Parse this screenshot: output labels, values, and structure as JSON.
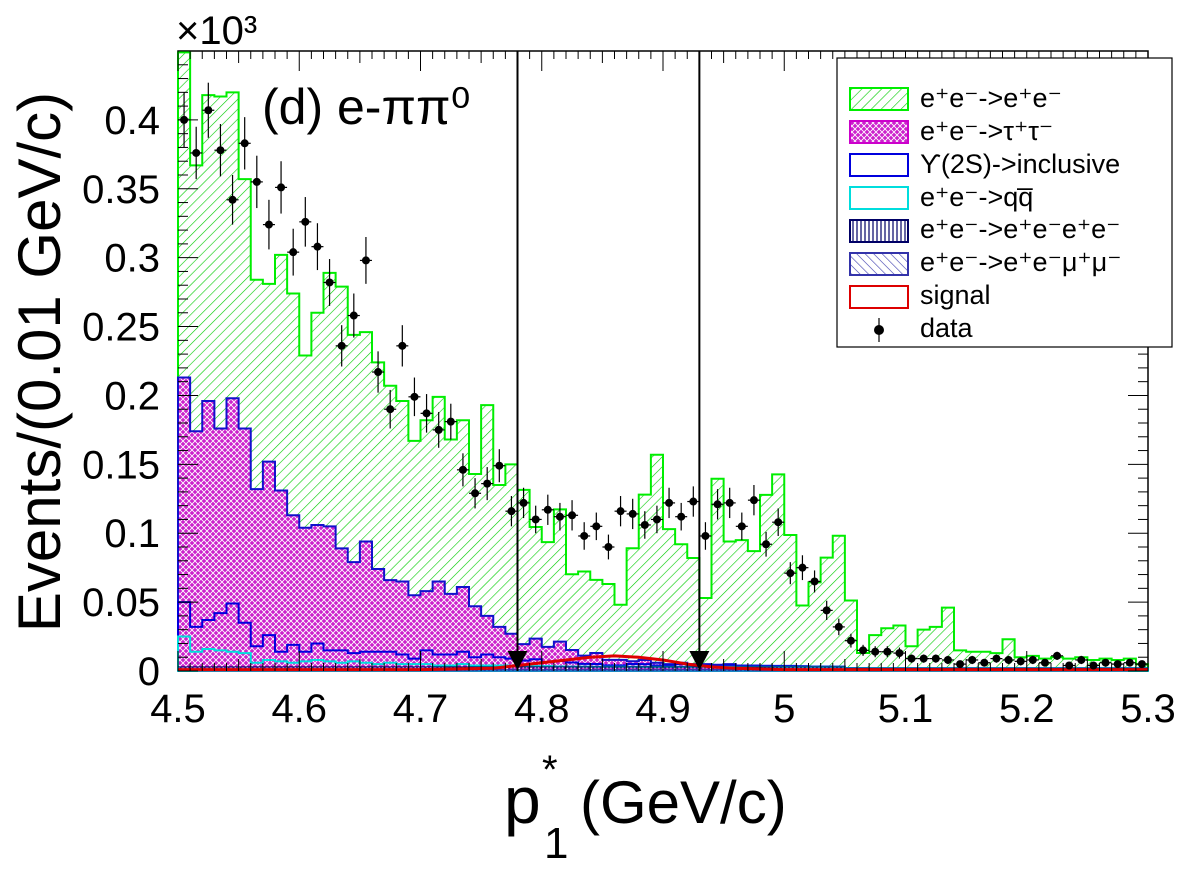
{
  "chart_data": {
    "type": "bar",
    "panel_label": "(d) e-ππ⁰",
    "exponent_label": "×10³",
    "xlabel_main": "p",
    "xlabel_sub": "1",
    "xlabel_sup": "*",
    "xlabel_units": "(GeV/c)",
    "ylabel": "Events/(0.01 GeV/c)",
    "xlim": [
      4.5,
      5.3
    ],
    "ylim": [
      0,
      0.45
    ],
    "y_units_scale": 1000,
    "x_ticks": [
      "4.5",
      "4.6",
      "4.7",
      "4.8",
      "4.9",
      "5",
      "5.1",
      "5.2",
      "5.3"
    ],
    "x_tick_values": [
      4.5,
      4.6,
      4.7,
      4.8,
      4.9,
      5.0,
      5.1,
      5.2,
      5.3
    ],
    "y_ticks": [
      "0",
      "0.05",
      "0.1",
      "0.15",
      "0.2",
      "0.25",
      "0.3",
      "0.35",
      "0.4"
    ],
    "y_tick_values": [
      0,
      0.05,
      0.1,
      0.15,
      0.2,
      0.25,
      0.3,
      0.35,
      0.4
    ],
    "cut_lines": [
      4.78,
      4.93
    ],
    "bin_width": 0.01,
    "bin_edges_start": 4.5,
    "stack_series": [
      {
        "name": "e+e- -> e+e-",
        "color": "#00dd00",
        "values": [
          0.236,
          0.193,
          0.222,
          0.241,
          0.222,
          0.181,
          0.152,
          0.129,
          0.171,
          0.161,
          0.125,
          0.154,
          0.184,
          0.19,
          0.165,
          0.152,
          0.15,
          0.141,
          0.131,
          0.112,
          0.124,
          0.134,
          0.112,
          0.121,
          0.096,
          0.153,
          0.103,
          0.123,
          0.112,
          0.081,
          0.076,
          0.096,
          0.055,
          0.061,
          0.053,
          0.055,
          0.04,
          0.082,
          0.12,
          0.151,
          0.098,
          0.086,
          0.077,
          0.048,
          0.135,
          0.089,
          0.091,
          0.083,
          0.124,
          0.139,
          0.095,
          0.044,
          0.061,
          0.079,
          0.095,
          0.049,
          0.011,
          0.024,
          0.029,
          0.031,
          0.016,
          0.028,
          0.03,
          0.044,
          0.013,
          0.012,
          0.012,
          0.011,
          0.021,
          0.008,
          0.009,
          0.007,
          0.008,
          0.007,
          0.008,
          0.006,
          0.007,
          0.006,
          0.007,
          0.003
        ]
      },
      {
        "name": "e+e- -> tau+tau-",
        "color": "#cc00cc",
        "values": [
          0.163,
          0.142,
          0.159,
          0.134,
          0.149,
          0.141,
          0.114,
          0.126,
          0.117,
          0.094,
          0.09,
          0.086,
          0.09,
          0.074,
          0.066,
          0.08,
          0.06,
          0.052,
          0.053,
          0.046,
          0.043,
          0.053,
          0.044,
          0.047,
          0.037,
          0.028,
          0.022,
          0.018,
          0.012,
          0.015,
          0.011,
          0.014,
          0.009,
          0.006,
          0.008,
          0.004,
          0.004,
          0.002,
          0.003,
          0.002,
          0.001,
          0.001,
          0.001,
          0.001,
          0.001,
          0.001,
          0.0005,
          0.0005,
          0.0003,
          0.0002,
          0.0002,
          0.0002,
          0.0001,
          0.0001,
          0.0001,
          0.0001,
          0,
          0,
          0,
          0,
          0,
          0,
          0,
          0,
          0,
          0,
          0,
          0,
          0,
          0,
          0,
          0,
          0,
          0,
          0,
          0,
          0,
          0,
          0,
          0
        ]
      },
      {
        "name": "Upsilon(2S) -> inclusive",
        "color": "#0000cc",
        "values": [
          0.025,
          0.018,
          0.021,
          0.027,
          0.035,
          0.022,
          0.012,
          0.018,
          0.007,
          0.013,
          0.007,
          0.012,
          0.008,
          0.009,
          0.006,
          0.008,
          0.009,
          0.008,
          0.007,
          0.004,
          0.01,
          0.008,
          0.008,
          0.009,
          0.006,
          0.008,
          0.006,
          0.005,
          0.004,
          0.005,
          0.003,
          0.004,
          0.003,
          0.002,
          0.002,
          0.001,
          0.001,
          0.002,
          0.002,
          0.001,
          0.001,
          0.002,
          0.001,
          0.001,
          0.0005,
          0.001,
          0.0005,
          0.0005,
          0.0005,
          0.0005,
          0.0005,
          0.0003,
          0.0002,
          0.0002,
          0.0001,
          0.0001,
          0.0001,
          0,
          0,
          0,
          0,
          0,
          0,
          0,
          0,
          0,
          0,
          0,
          0,
          0,
          0,
          0,
          0,
          0,
          0,
          0,
          0,
          0,
          0,
          0
        ]
      },
      {
        "name": "e+e- -> q qbar",
        "color": "#00cccc",
        "values": [
          0.022,
          0.011,
          0.013,
          0.012,
          0.011,
          0.01,
          0.003,
          0.005,
          0.004,
          0.003,
          0.004,
          0.005,
          0.004,
          0.003,
          0.004,
          0.003,
          0.002,
          0.003,
          0.002,
          0.002,
          0.002,
          0.001,
          0.001,
          0.002,
          0.001,
          0.001,
          0.001,
          0.001,
          0.0005,
          0.0005,
          0.0005,
          0.0003,
          0.0002,
          0.0002,
          0.0001,
          0.0001,
          0.0001,
          0.0001,
          0,
          0,
          0,
          0,
          0,
          0,
          0,
          0,
          0,
          0,
          0,
          0,
          0,
          0,
          0,
          0,
          0,
          0,
          0,
          0,
          0,
          0,
          0,
          0,
          0,
          0,
          0,
          0,
          0,
          0,
          0,
          0,
          0,
          0,
          0,
          0,
          0,
          0,
          0,
          0,
          0,
          0
        ]
      },
      {
        "name": "e+e- -> e+e-e+e-",
        "color": "#000066",
        "values": [
          0.002,
          0.002,
          0.002,
          0.002,
          0.002,
          0.002,
          0.002,
          0.002,
          0.002,
          0.002,
          0.002,
          0.002,
          0.002,
          0.002,
          0.002,
          0.002,
          0.002,
          0.002,
          0.002,
          0.002,
          0.002,
          0.002,
          0.002,
          0.002,
          0.002,
          0.002,
          0.002,
          0.002,
          0.002,
          0.002,
          0.002,
          0.002,
          0.002,
          0.002,
          0.002,
          0.002,
          0.002,
          0.002,
          0.002,
          0.002,
          0.002,
          0.002,
          0.002,
          0.002,
          0.002,
          0.002,
          0.002,
          0.002,
          0.002,
          0.002,
          0.002,
          0.002,
          0.002,
          0.002,
          0.002,
          0.001,
          0.001,
          0.001,
          0.001,
          0.001,
          0.001,
          0.001,
          0.001,
          0.001,
          0.001,
          0.001,
          0.001,
          0.001,
          0.001,
          0.001,
          0.001,
          0.001,
          0.001,
          0.001,
          0.001,
          0.001,
          0.001,
          0.001,
          0.001,
          0.001
        ]
      },
      {
        "name": "e+e- -> e+e-mu+mu-",
        "color": "#3333aa",
        "values": [
          0.001,
          0.001,
          0.001,
          0.001,
          0.001,
          0.001,
          0.001,
          0.001,
          0.001,
          0.001,
          0.001,
          0.001,
          0.001,
          0.001,
          0.001,
          0.001,
          0.001,
          0.001,
          0.001,
          0.001,
          0.001,
          0.001,
          0.001,
          0.001,
          0.001,
          0.001,
          0.001,
          0.001,
          0.001,
          0.001,
          0.001,
          0.001,
          0.001,
          0.001,
          0.001,
          0.001,
          0.001,
          0.001,
          0.001,
          0.001,
          0.001,
          0.001,
          0.001,
          0.001,
          0.001,
          0.001,
          0.001,
          0.001,
          0.001,
          0.001,
          0.001,
          0.001,
          0.001,
          0.001,
          0.001,
          0.001,
          0.001,
          0.001,
          0.001,
          0.001,
          0.001,
          0.001,
          0.001,
          0.001,
          0.001,
          0.001,
          0.001,
          0.001,
          0.001,
          0.001,
          0.001,
          0.001,
          0.001,
          0.001,
          0.001,
          0.001,
          0.001,
          0.001,
          0.001,
          0.001
        ]
      }
    ],
    "signal": {
      "name": "signal",
      "color": "#dd0000",
      "x": [
        4.5,
        4.6,
        4.7,
        4.76,
        4.78,
        4.8,
        4.82,
        4.84,
        4.86,
        4.88,
        4.9,
        4.92,
        4.94,
        4.96,
        5.0,
        5.1,
        5.3
      ],
      "values": [
        0.001,
        0.001,
        0.001,
        0.002,
        0.004,
        0.006,
        0.008,
        0.01,
        0.011,
        0.01,
        0.008,
        0.005,
        0.003,
        0.002,
        0.001,
        0.001,
        0.001
      ]
    },
    "data_points": {
      "name": "data",
      "x": [
        4.505,
        4.515,
        4.525,
        4.535,
        4.545,
        4.555,
        4.565,
        4.575,
        4.585,
        4.595,
        4.605,
        4.615,
        4.625,
        4.635,
        4.645,
        4.655,
        4.665,
        4.675,
        4.685,
        4.695,
        4.705,
        4.715,
        4.725,
        4.735,
        4.745,
        4.755,
        4.765,
        4.775,
        4.785,
        4.795,
        4.805,
        4.815,
        4.825,
        4.835,
        4.845,
        4.855,
        4.865,
        4.875,
        4.885,
        4.895,
        4.905,
        4.915,
        4.925,
        4.935,
        4.945,
        4.955,
        4.965,
        4.975,
        4.985,
        4.995,
        5.005,
        5.015,
        5.025,
        5.035,
        5.045,
        5.055,
        5.065,
        5.075,
        5.085,
        5.095,
        5.105,
        5.115,
        5.125,
        5.135,
        5.145,
        5.155,
        5.165,
        5.175,
        5.185,
        5.195,
        5.205,
        5.215,
        5.225,
        5.235,
        5.245,
        5.255,
        5.265,
        5.275,
        5.285,
        5.295
      ],
      "y": [
        0.4,
        0.376,
        0.407,
        0.378,
        0.342,
        0.383,
        0.355,
        0.324,
        0.351,
        0.304,
        0.326,
        0.308,
        0.282,
        0.236,
        0.258,
        0.298,
        0.217,
        0.19,
        0.236,
        0.199,
        0.187,
        0.175,
        0.181,
        0.146,
        0.129,
        0.136,
        0.149,
        0.116,
        0.122,
        0.11,
        0.117,
        0.112,
        0.113,
        0.098,
        0.105,
        0.09,
        0.116,
        0.114,
        0.106,
        0.11,
        0.122,
        0.112,
        0.123,
        0.098,
        0.121,
        0.122,
        0.105,
        0.124,
        0.092,
        0.108,
        0.071,
        0.075,
        0.065,
        0.044,
        0.032,
        0.022,
        0.015,
        0.014,
        0.014,
        0.013,
        0.009,
        0.009,
        0.009,
        0.008,
        0.005,
        0.008,
        0.006,
        0.009,
        0.008,
        0.007,
        0.008,
        0.006,
        0.011,
        0.004,
        0.008,
        0.004,
        0.006,
        0.005,
        0.006,
        0.005
      ],
      "err": [
        0.02,
        0.019,
        0.02,
        0.019,
        0.018,
        0.019,
        0.019,
        0.018,
        0.019,
        0.017,
        0.018,
        0.017,
        0.017,
        0.015,
        0.016,
        0.017,
        0.015,
        0.014,
        0.015,
        0.014,
        0.014,
        0.013,
        0.013,
        0.012,
        0.011,
        0.012,
        0.012,
        0.011,
        0.011,
        0.01,
        0.011,
        0.01,
        0.011,
        0.01,
        0.01,
        0.009,
        0.011,
        0.011,
        0.01,
        0.01,
        0.011,
        0.01,
        0.011,
        0.01,
        0.011,
        0.011,
        0.01,
        0.011,
        0.009,
        0.01,
        0.008,
        0.009,
        0.008,
        0.007,
        0.006,
        0.005,
        0.004,
        0.004,
        0.004,
        0.004,
        0.003,
        0.003,
        0.003,
        0.003,
        0.002,
        0.003,
        0.002,
        0.003,
        0.003,
        0.003,
        0.003,
        0.002,
        0.003,
        0.002,
        0.003,
        0.002,
        0.002,
        0.002,
        0.002,
        0.002
      ]
    },
    "legend": {
      "placement": "top-right",
      "entries": [
        {
          "label": "e⁺e⁻->e⁺e⁻",
          "style": "hatch-green"
        },
        {
          "label": "e⁺e⁻->τ⁺τ⁻",
          "style": "cross-magenta"
        },
        {
          "label": "ϒ(2S)->inclusive",
          "style": "line-blue"
        },
        {
          "label": "e⁺e⁻->qq̅",
          "style": "line-cyan"
        },
        {
          "label": "e⁺e⁻->e⁺e⁻e⁺e⁻",
          "style": "vert-navy"
        },
        {
          "label": "e⁺e⁻->e⁺e⁻μ⁺μ⁻",
          "style": "diag-navy"
        },
        {
          "label": "signal",
          "style": "line-red"
        },
        {
          "label": "data",
          "style": "marker"
        }
      ]
    }
  }
}
